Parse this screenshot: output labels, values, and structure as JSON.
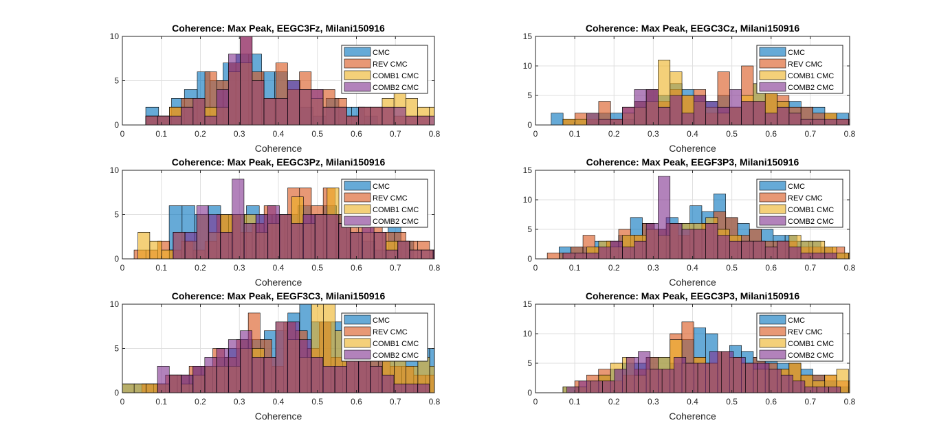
{
  "figure": {
    "series_style": [
      {
        "name": "CMC",
        "color": "#0072BD"
      },
      {
        "name": "REV CMC",
        "color": "#D95319"
      },
      {
        "name": "COMB1 CMC",
        "color": "#EDB120"
      },
      {
        "name": "COMB2 CMC",
        "color": "#7E2F8E"
      }
    ]
  },
  "chart_data": [
    {
      "type": "histogram",
      "title": "Coherence: Max Peak, EEGC3Fz, Milani150916",
      "xlabel": "Coherence",
      "xlim": [
        0,
        0.8
      ],
      "ylim": [
        0,
        10
      ],
      "xticks": [
        0,
        0.1,
        0.2,
        0.3,
        0.4,
        0.5,
        0.6,
        0.7,
        0.8
      ],
      "yticks": [
        0,
        5,
        10
      ],
      "legend_position": "top-right",
      "grid": true,
      "series": [
        {
          "name": "CMC",
          "bin_width": 0.033,
          "bin_start": 0.06,
          "counts": [
            2,
            1,
            3,
            4,
            6,
            5,
            7,
            8,
            8,
            6,
            6,
            5,
            2,
            1,
            3,
            2,
            2,
            1,
            0,
            0,
            0,
            0,
            0,
            0,
            0,
            0
          ]
        },
        {
          "name": "REV CMC",
          "bin_width": 0.0303,
          "bin_start": 0.06,
          "counts": [
            1,
            1,
            2,
            3,
            3,
            6,
            5,
            7,
            10,
            6,
            3,
            7,
            4,
            6,
            4,
            4,
            3,
            1,
            2,
            2,
            2,
            1,
            1,
            1,
            0,
            0,
            0,
            0,
            0,
            0,
            1,
            2
          ]
        },
        {
          "name": "COMB1 CMC",
          "bin_width": 0.0303,
          "bin_start": 0.06,
          "counts": [
            1,
            1,
            2,
            2,
            3,
            2,
            2,
            6,
            7,
            5,
            3,
            3,
            4,
            4,
            3,
            2,
            2,
            1,
            2,
            2,
            3,
            4,
            3,
            2,
            2,
            1,
            1,
            1,
            0,
            1,
            1,
            0
          ]
        },
        {
          "name": "COMB2 CMC",
          "bin_width": 0.0303,
          "bin_start": 0.06,
          "counts": [
            1,
            1,
            1,
            2,
            3,
            1,
            4,
            8,
            10,
            5,
            3,
            3,
            5,
            4,
            4,
            2,
            2,
            1,
            2,
            2,
            2,
            2,
            1,
            1,
            1,
            0,
            1,
            0,
            0,
            0,
            0,
            0
          ]
        }
      ]
    },
    {
      "type": "histogram",
      "title": "Coherence: Max Peak, EEGC3Cz, Milani150916",
      "xlabel": "Coherence",
      "xlim": [
        0,
        0.8
      ],
      "ylim": [
        0,
        15
      ],
      "xticks": [
        0,
        0.1,
        0.2,
        0.3,
        0.4,
        0.5,
        0.6,
        0.7,
        0.8
      ],
      "yticks": [
        0,
        5,
        10,
        15
      ],
      "legend_position": "top-right",
      "grid": true,
      "series": [
        {
          "name": "CMC",
          "bin_width": 0.0303,
          "bin_start": 0.04,
          "counts": [
            2,
            1,
            1,
            2,
            2,
            2,
            1,
            4,
            6,
            5,
            7,
            6,
            5,
            4,
            5,
            3,
            4,
            7,
            6,
            4,
            4,
            3,
            3,
            2,
            2,
            1,
            1,
            1,
            1,
            0,
            0,
            0,
            0
          ]
        },
        {
          "name": "REV CMC",
          "bin_width": 0.0303,
          "bin_start": 0.07,
          "counts": [
            1,
            2,
            1,
            4,
            1,
            3,
            4,
            6,
            4,
            6,
            5,
            6,
            2,
            9,
            3,
            10,
            4,
            7,
            5,
            3,
            3,
            2,
            2,
            1,
            1,
            1,
            2,
            2,
            0,
            1,
            3
          ]
        },
        {
          "name": "COMB1 CMC",
          "bin_width": 0.0303,
          "bin_start": 0.07,
          "counts": [
            1,
            1,
            2,
            1,
            1,
            2,
            3,
            4,
            11,
            9,
            5,
            4,
            3,
            2,
            3,
            5,
            7,
            7,
            4,
            2,
            1,
            1,
            2,
            1,
            1,
            1,
            0,
            0
          ]
        },
        {
          "name": "COMB2 CMC",
          "bin_width": 0.0303,
          "bin_start": 0.07,
          "counts": [
            0,
            0,
            2,
            1,
            1,
            3,
            6,
            6,
            3,
            5,
            2,
            5,
            4,
            3,
            6,
            4,
            4,
            2,
            3,
            2,
            1,
            1,
            1,
            1,
            1,
            0,
            0,
            0
          ]
        }
      ]
    },
    {
      "type": "histogram",
      "title": "Coherence: Max Peak, EEGC3Pz, Milani150916",
      "xlabel": "Coherence",
      "xlim": [
        0,
        0.8
      ],
      "ylim": [
        0,
        10
      ],
      "xticks": [
        0,
        0.1,
        0.2,
        0.3,
        0.4,
        0.5,
        0.6,
        0.7,
        0.8
      ],
      "yticks": [
        0,
        5,
        10
      ],
      "legend_position": "top-right",
      "grid": true,
      "series": [
        {
          "name": "CMC",
          "bin_width": 0.033,
          "bin_start": 0.12,
          "counts": [
            6,
            6,
            5,
            6,
            5,
            5,
            6,
            5,
            5,
            5,
            6,
            5,
            6,
            5,
            3,
            2,
            1,
            5,
            2,
            0,
            0,
            0,
            0,
            0,
            0,
            0,
            0,
            0,
            1
          ]
        },
        {
          "name": "REV CMC",
          "bin_width": 0.0303,
          "bin_start": 0.03,
          "counts": [
            1,
            1,
            2,
            1,
            2,
            1,
            2,
            5,
            5,
            3,
            4,
            6,
            5,
            8,
            8,
            6,
            8,
            5,
            9,
            5,
            4,
            3,
            3,
            2,
            2,
            1,
            1,
            1,
            1,
            1,
            1,
            1
          ]
        },
        {
          "name": "COMB1 CMC",
          "bin_width": 0.0303,
          "bin_start": 0.04,
          "counts": [
            3,
            2,
            1,
            3,
            2,
            5,
            3,
            5,
            5,
            5,
            3,
            4,
            5,
            7,
            4,
            5,
            8,
            4,
            3,
            3,
            3,
            2,
            2,
            1,
            1,
            1,
            1,
            0,
            0
          ]
        },
        {
          "name": "COMB2 CMC",
          "bin_width": 0.0303,
          "bin_start": 0.13,
          "counts": [
            3,
            3,
            6,
            5,
            3,
            9,
            4,
            5,
            6,
            5,
            4,
            5,
            5,
            5,
            4,
            3,
            5,
            3,
            1,
            2,
            1,
            1,
            1,
            0,
            0
          ]
        }
      ]
    },
    {
      "type": "histogram",
      "title": "Coherence: Max Peak, EEGF3P3, Milani150916",
      "xlabel": "Coherence",
      "xlim": [
        0,
        0.8
      ],
      "ylim": [
        0,
        15
      ],
      "xticks": [
        0,
        0.1,
        0.2,
        0.3,
        0.4,
        0.5,
        0.6,
        0.7,
        0.8
      ],
      "yticks": [
        0,
        5,
        10,
        15
      ],
      "legend_position": "top-right",
      "grid": true,
      "series": [
        {
          "name": "CMC",
          "bin_width": 0.0303,
          "bin_start": 0.06,
          "counts": [
            2,
            2,
            2,
            3,
            3,
            4,
            7,
            6,
            5,
            7,
            6,
            9,
            8,
            11,
            7,
            6,
            5,
            5,
            4,
            4,
            3,
            3,
            2,
            1,
            1,
            1,
            0,
            0,
            0,
            0,
            0,
            0,
            0,
            0,
            0,
            0,
            0,
            1
          ]
        },
        {
          "name": "REV CMC",
          "bin_width": 0.0303,
          "bin_start": 0.03,
          "counts": [
            1,
            1,
            2,
            4,
            2,
            3,
            5,
            4,
            6,
            5,
            6,
            4,
            5,
            6,
            8,
            7,
            4,
            5,
            3,
            3,
            3,
            2,
            2,
            2,
            2,
            1,
            1,
            1,
            0,
            0,
            0,
            0
          ]
        },
        {
          "name": "COMB1 CMC",
          "bin_width": 0.0303,
          "bin_start": 0.07,
          "counts": [
            1,
            1,
            2,
            3,
            2,
            4,
            4,
            5,
            4,
            6,
            6,
            6,
            7,
            5,
            4,
            3,
            3,
            2,
            3,
            4,
            3,
            3,
            2,
            1,
            1,
            1,
            0,
            0,
            0
          ]
        },
        {
          "name": "COMB2 CMC",
          "bin_width": 0.0303,
          "bin_start": 0.07,
          "counts": [
            1,
            1,
            1,
            2,
            3,
            2,
            3,
            6,
            14,
            6,
            5,
            5,
            6,
            4,
            3,
            3,
            3,
            2,
            3,
            2,
            1,
            1,
            1,
            0,
            0,
            0,
            0,
            0,
            0
          ]
        }
      ]
    },
    {
      "type": "histogram",
      "title": "Coherence: Max Peak, EEGF3C3, Milani150916",
      "xlabel": "Coherence",
      "xlim": [
        0,
        0.8
      ],
      "ylim": [
        0,
        10
      ],
      "xticks": [
        0,
        0.1,
        0.2,
        0.3,
        0.4,
        0.5,
        0.6,
        0.7,
        0.8
      ],
      "yticks": [
        0,
        5,
        10
      ],
      "legend_position": "top-right",
      "grid": true,
      "series": [
        {
          "name": "CMC",
          "bin_width": 0.0303,
          "bin_start": 0.0,
          "counts": [
            1,
            1,
            1,
            1,
            2,
            2,
            3,
            3,
            4,
            5,
            6,
            6,
            7,
            7,
            9,
            10,
            8,
            8,
            8,
            5,
            5,
            4,
            4,
            4,
            4,
            5,
            5,
            5,
            4,
            2,
            1,
            1,
            0,
            0,
            0,
            0,
            0,
            0
          ]
        },
        {
          "name": "REV CMC",
          "bin_width": 0.0303,
          "bin_start": 0.05,
          "counts": [
            1,
            1,
            2,
            2,
            3,
            3,
            5,
            4,
            6,
            9,
            6,
            3,
            8,
            7,
            5,
            8,
            4,
            5,
            6,
            5,
            4,
            3,
            3,
            2,
            2,
            1,
            1
          ]
        },
        {
          "name": "COMB1 CMC",
          "bin_width": 0.0303,
          "bin_start": 0.0,
          "counts": [
            1,
            1,
            1,
            1,
            2,
            1,
            2,
            3,
            3,
            3,
            5,
            5,
            4,
            8,
            6,
            4,
            10,
            10,
            7,
            4,
            4,
            3,
            5,
            4,
            3,
            4,
            3,
            3,
            2,
            2
          ]
        },
        {
          "name": "COMB2 CMC",
          "bin_width": 0.0303,
          "bin_start": 0.09,
          "counts": [
            3,
            2,
            2,
            3,
            4,
            5,
            6,
            7,
            4,
            4,
            8,
            8,
            6,
            4,
            3,
            3,
            5,
            4,
            3,
            2,
            1,
            1,
            1,
            0,
            0,
            0,
            0,
            0,
            0,
            0,
            0,
            0,
            0,
            1
          ]
        }
      ]
    },
    {
      "type": "histogram",
      "title": "Coherence: Max Peak, EEGC3P3, Milani150916",
      "xlabel": "Coherence",
      "xlim": [
        0,
        0.8
      ],
      "ylim": [
        0,
        15
      ],
      "xticks": [
        0,
        0.1,
        0.2,
        0.3,
        0.4,
        0.5,
        0.6,
        0.7,
        0.8
      ],
      "yticks": [
        0,
        5,
        10,
        15
      ],
      "legend_position": "top-right",
      "grid": true,
      "series": [
        {
          "name": "CMC",
          "bin_width": 0.0303,
          "bin_start": 0.07,
          "counts": [
            1,
            1,
            2,
            3,
            4,
            5,
            5,
            6,
            6,
            5,
            9,
            11,
            10,
            7,
            8,
            7,
            6,
            6,
            5,
            5,
            4,
            3,
            2,
            1,
            1,
            1,
            0,
            0,
            0,
            0,
            0,
            0,
            0,
            1
          ]
        },
        {
          "name": "REV CMC",
          "bin_width": 0.0303,
          "bin_start": 0.1,
          "counts": [
            2,
            3,
            4,
            2,
            3,
            4,
            6,
            4,
            10,
            12,
            6,
            5,
            7,
            6,
            5,
            6,
            5,
            4,
            5,
            3,
            3,
            3,
            2,
            2,
            1,
            1,
            1,
            1,
            1
          ]
        },
        {
          "name": "COMB1 CMC",
          "bin_width": 0.0303,
          "bin_start": 0.07,
          "counts": [
            1,
            1,
            2,
            3,
            5,
            6,
            3,
            4,
            6,
            9,
            5,
            6,
            5,
            7,
            6,
            5,
            4,
            4,
            4,
            5,
            3,
            2,
            3,
            4,
            2,
            1,
            1,
            0,
            0
          ]
        },
        {
          "name": "COMB2 CMC",
          "bin_width": 0.0303,
          "bin_start": 0.08,
          "counts": [
            1,
            2,
            2,
            2,
            4,
            6,
            7,
            4,
            4,
            6,
            5,
            5,
            7,
            7,
            6,
            5,
            5,
            4,
            3,
            2,
            1,
            1,
            1,
            0,
            0
          ]
        }
      ]
    }
  ]
}
